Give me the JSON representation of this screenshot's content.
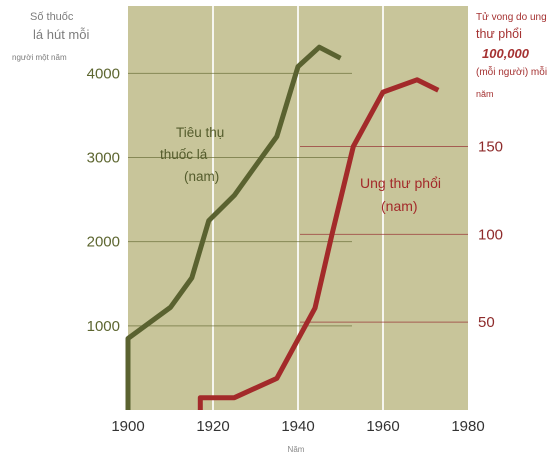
{
  "chart_data": {
    "type": "line",
    "title": "",
    "xlabel": "Năm",
    "left_axis": {
      "title": [
        "Số thuốc",
        "lá hút mỗi",
        "người một năm"
      ],
      "ticks": [
        1000,
        2000,
        3000,
        4000
      ],
      "tick_labels": [
        "1000",
        "2000",
        "3000",
        "4000"
      ],
      "range": [
        0,
        4800
      ]
    },
    "right_axis": {
      "title": [
        "Tử vong do ung",
        "thư phổi",
        "100,000",
        "(mỗi người) mỗi",
        "năm"
      ],
      "ticks": [
        50,
        100,
        150
      ],
      "tick_labels": [
        "50",
        "100",
        "150"
      ],
      "range": [
        0,
        230
      ]
    },
    "x_axis": {
      "ticks": [
        1900,
        1920,
        1940,
        1960,
        1980
      ],
      "tick_labels": [
        "1900",
        "1920",
        "1940",
        "1960",
        "1980"
      ],
      "range": [
        1900,
        1980
      ]
    },
    "background_color": "#c8c59a",
    "grid": true,
    "series": [
      {
        "name": [
          "Tiêu thụ",
          "thuốc lá",
          "(nam)"
        ],
        "axis": "left",
        "color": "#5a6230",
        "x": [
          1900,
          1900,
          1910,
          1915,
          1919,
          1925,
          1930,
          1935,
          1940,
          1945,
          1950
        ],
        "y": [
          0,
          850,
          1220,
          1570,
          2250,
          2550,
          2900,
          3250,
          4080,
          4310,
          4180
        ]
      },
      {
        "name": [
          "Ung thư phổi",
          "(nam)"
        ],
        "axis": "right",
        "color": "#a32a2a",
        "x": [
          1917,
          1917,
          1925,
          1935,
          1944,
          1948,
          1953,
          1960,
          1968,
          1973
        ],
        "y": [
          0,
          7,
          7,
          18,
          58,
          100,
          150,
          181,
          188,
          182
        ]
      }
    ]
  }
}
